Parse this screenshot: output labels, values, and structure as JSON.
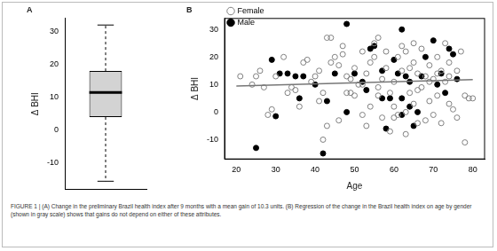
{
  "chart_data": [
    {
      "type": "box",
      "title": "A",
      "ylabel": "Δ BHI",
      "color": "#d3d3d3",
      "min": -15.5,
      "q1": 4,
      "median": 11.5,
      "q3": 18,
      "max": 32,
      "ylim": [
        -18,
        34
      ],
      "yticks": [
        -10,
        0,
        10,
        20,
        30
      ],
      "grid": false
    },
    {
      "type": "scatter",
      "title": "B",
      "xlabel": "Age",
      "ylabel": "Δ BHI",
      "xlim": [
        17,
        83
      ],
      "xticks": [
        20,
        30,
        40,
        50,
        60,
        70,
        80
      ],
      "ylim": [
        -17,
        34
      ],
      "yticks": [
        -10,
        0,
        10,
        20,
        30
      ],
      "grid": false,
      "legend": "top-left",
      "series": [
        {
          "name": "Female",
          "color": "#808080",
          "marker": "open circle",
          "x": [
            21,
            24,
            25,
            26,
            27,
            28,
            29,
            30,
            32,
            33,
            34,
            35,
            36,
            37,
            38,
            39,
            40,
            41,
            42,
            42,
            43,
            44,
            43,
            44,
            45,
            46,
            47,
            48,
            48,
            49,
            50,
            50,
            51,
            52,
            52,
            53,
            53,
            54,
            55,
            55,
            56,
            56,
            57,
            57,
            58,
            58,
            59,
            59,
            60,
            60,
            61,
            61,
            62,
            62,
            63,
            63,
            64,
            64,
            65,
            65,
            65,
            66,
            66,
            67,
            67,
            68,
            68,
            69,
            69,
            70,
            70,
            71,
            71,
            72,
            72,
            73,
            73,
            74,
            74,
            75,
            76,
            76,
            77,
            78,
            78,
            79,
            80,
            46,
            41,
            52,
            56,
            60,
            63,
            66,
            69,
            71,
            74,
            49,
            47,
            54
          ],
          "values": [
            13,
            10,
            13,
            15,
            9,
            -1,
            1,
            13,
            20,
            7,
            9,
            8,
            2,
            18,
            19,
            11,
            13,
            15,
            7,
            -10,
            27,
            27,
            -5,
            18,
            20,
            17,
            21,
            13,
            7,
            12,
            6,
            16,
            10,
            22,
            -1,
            -5,
            14,
            18,
            20,
            25,
            27,
            9,
            -2,
            12,
            22,
            16,
            -7,
            7,
            11,
            2,
            20,
            -1,
            24,
            15,
            22,
            -8,
            16,
            7,
            18,
            25,
            3,
            14,
            -4,
            23,
            9,
            13,
            -3,
            17,
            4,
            12,
            -1,
            20,
            6,
            15,
            -4,
            25,
            11,
            3,
            18,
            1,
            15,
            -2,
            22,
            -11,
            6,
            5,
            5,
            -3,
            4,
            10,
            6,
            -2,
            0,
            8,
            11,
            14,
            13,
            7,
            24,
            2
          ]
        },
        {
          "name": "Male",
          "color": "#000000",
          "marker": "filled circle",
          "x": [
            25,
            29,
            30,
            33,
            36,
            37,
            40,
            42,
            43,
            45,
            48,
            50,
            52,
            53,
            54,
            55,
            57,
            58,
            59,
            60,
            61,
            62,
            62,
            63,
            64,
            65,
            66,
            67,
            68,
            70,
            71,
            72,
            73,
            74,
            75,
            76,
            62,
            48,
            35,
            31,
            57,
            64
          ],
          "values": [
            -13,
            19,
            -1.5,
            14,
            5,
            13,
            10,
            -15,
            4,
            14,
            32,
            14,
            11,
            8,
            23,
            24,
            15,
            -6,
            5,
            19,
            14,
            30,
            5,
            13,
            2,
            -5,
            0,
            13,
            20,
            26,
            10,
            14,
            7,
            23,
            21,
            12,
            -1,
            0,
            13,
            14,
            5,
            11
          ]
        },
        {
          "type": "line",
          "color": "#777777",
          "x": [
            20,
            80
          ],
          "values": [
            9.5,
            11.8
          ]
        }
      ]
    }
  ],
  "caption": "FIGURE 1 | (A) Change in the preliminary Brazil health index after 9 months with a mean gain of 10.3 units. (B) Regression of the change in the Brazil health index on age by gender (shown in gray scale) shows that gains do not depend on either of these attributes."
}
